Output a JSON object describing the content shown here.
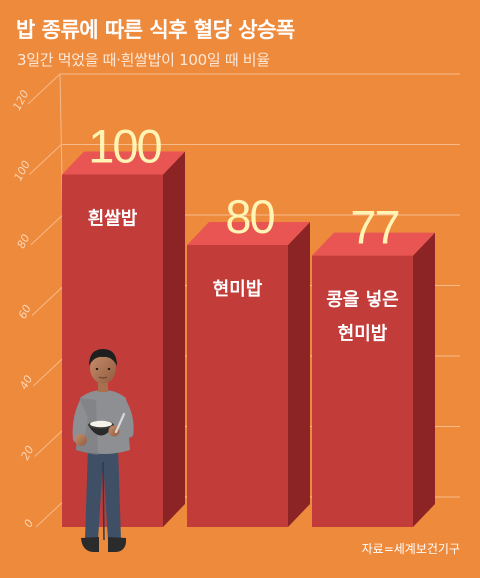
{
  "header": {
    "title": "밥 종류에 따른 식후 혈당 상승폭",
    "subtitle": "3일간 먹었을 때·흰쌀밥이 100일 때 비율"
  },
  "chart_data": {
    "type": "bar",
    "title": "밥 종류에 따른 식후 혈당 상승폭",
    "subtitle": "3일간 먹었을 때·흰쌀밥이 100일 때 비율",
    "categories": [
      [
        "흰쌀밥"
      ],
      [
        "현미밥"
      ],
      [
        "콩을 넣은",
        "현미밥"
      ]
    ],
    "values": [
      100,
      80,
      77
    ],
    "value_labels": [
      "100",
      "80",
      "77"
    ],
    "y_ticks": [
      0,
      20,
      40,
      60,
      80,
      100,
      120
    ],
    "ylim": [
      0,
      120
    ],
    "grid": true,
    "style": "3d-columns",
    "colors": {
      "background": "#ee8a3c",
      "bar_front": "#c23c3a",
      "bar_top": "#e85552",
      "bar_side": "#8c2426",
      "value_label": "#fff4b3",
      "grid": "#f6b98a"
    }
  },
  "illustration": {
    "name": "person-holding-rice-bowl"
  },
  "source": "자료=세계보건기구"
}
